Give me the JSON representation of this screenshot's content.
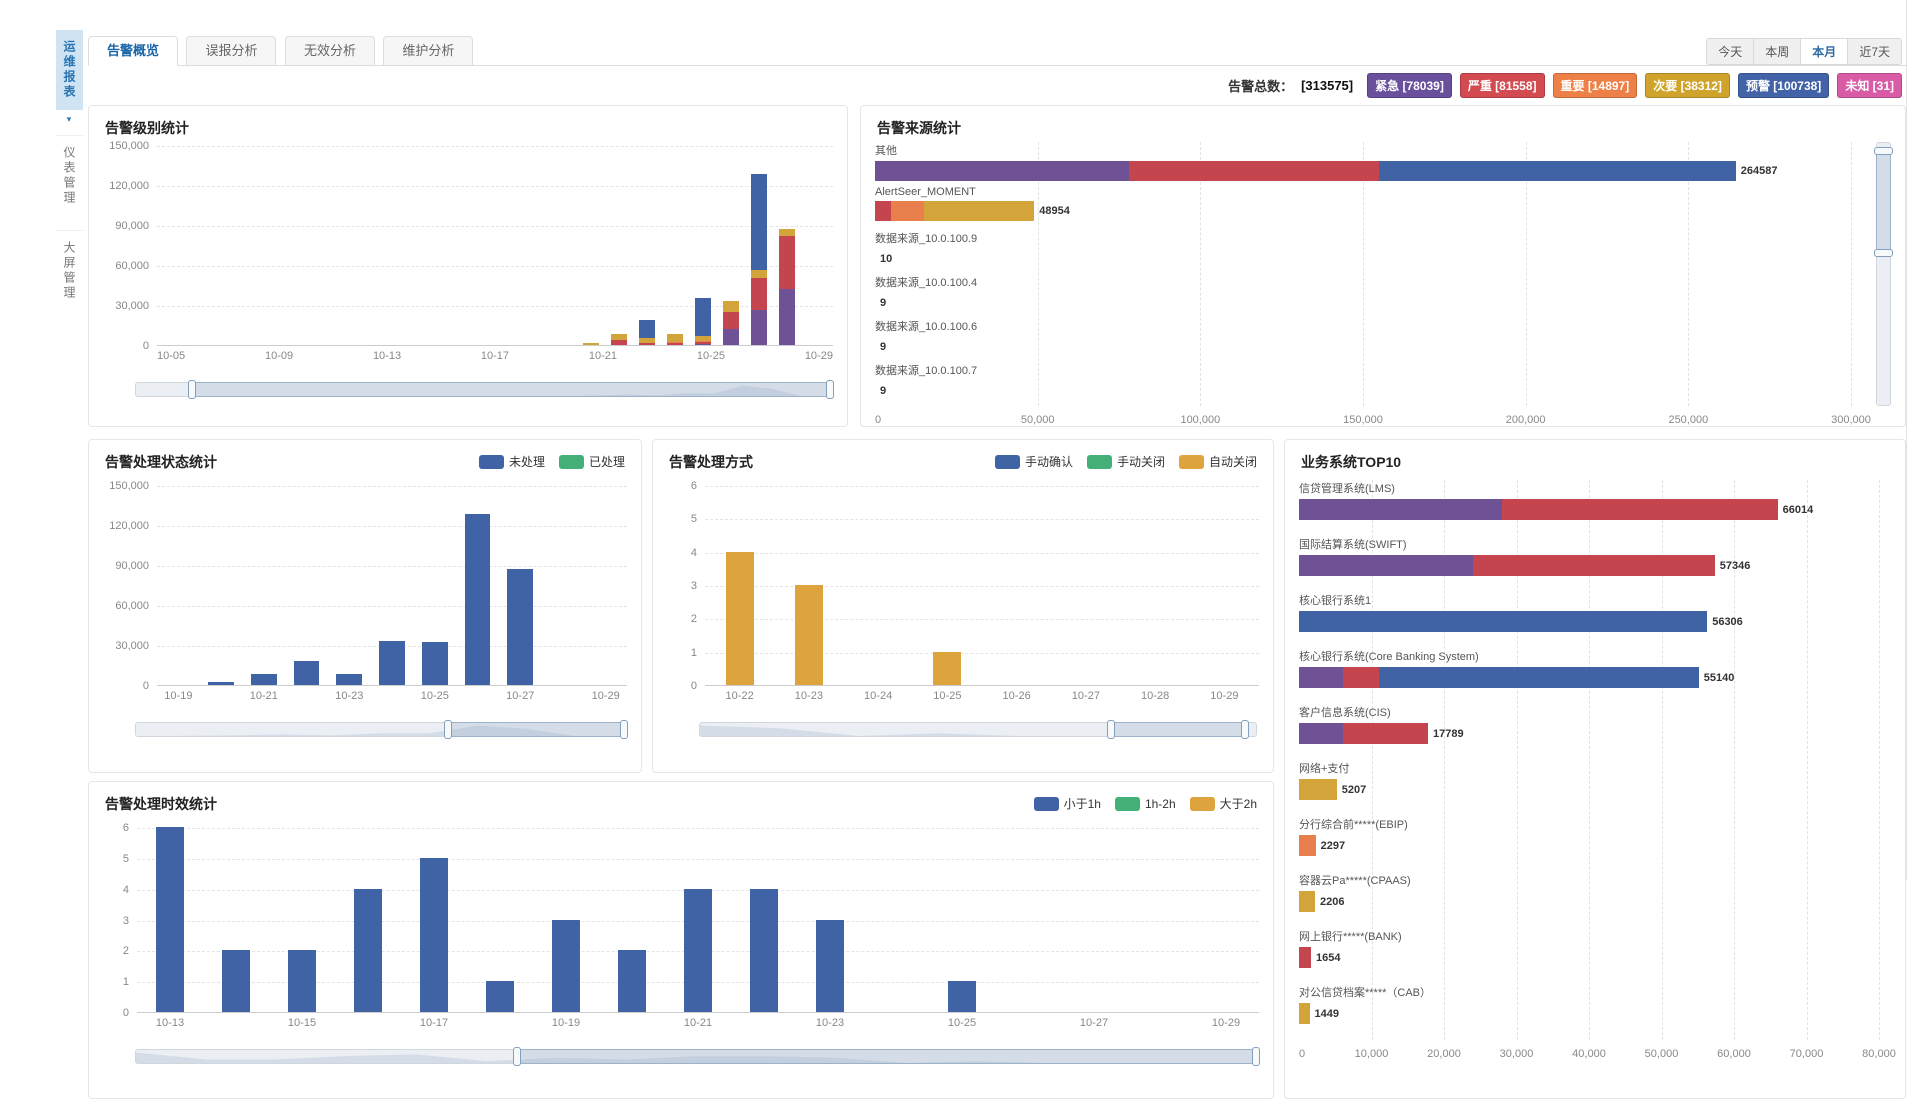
{
  "sidebar": {
    "items": [
      {
        "label": "运维报表",
        "active": true
      },
      {
        "label": "仪表管理",
        "active": false
      },
      {
        "label": "大屏管理",
        "active": false
      }
    ]
  },
  "tabs": [
    {
      "label": "告警概览",
      "active": true
    },
    {
      "label": "误报分析",
      "active": false
    },
    {
      "label": "无效分析",
      "active": false
    },
    {
      "label": "维护分析",
      "active": false
    }
  ],
  "time_filters": [
    {
      "label": "今天",
      "active": false
    },
    {
      "label": "本周",
      "active": false
    },
    {
      "label": "本月",
      "active": true
    },
    {
      "label": "近7天",
      "active": false
    }
  ],
  "summary": {
    "total_label": "告警总数：",
    "total_value": "[313575]",
    "badges": [
      {
        "label": "紧急 [78039]",
        "color": "#6a4f9d"
      },
      {
        "label": "严重 [81558]",
        "color": "#d34a50"
      },
      {
        "label": "重要 [14897]",
        "color": "#ed8047"
      },
      {
        "label": "次要 [38312]",
        "color": "#d0a42c"
      },
      {
        "label": "预警 [100738]",
        "color": "#4263a8"
      },
      {
        "label": "未知 [31]",
        "color": "#d95ba6"
      }
    ]
  },
  "colors": {
    "blue": "#3f63a5",
    "red": "#c5454f",
    "purple": "#6f5196",
    "yellow": "#d2a43a",
    "orange": "#e87f4c",
    "green": "#43b07a",
    "magenta": "#d95ba6",
    "accent": "#2e6da4"
  },
  "chart_data": [
    {
      "type": "bar",
      "stacked": true,
      "title": "告警级别统计",
      "categories": [
        "10-05",
        "10-06",
        "10-07",
        "10-08",
        "10-09",
        "10-10",
        "10-11",
        "10-12",
        "10-13",
        "10-14",
        "10-15",
        "10-16",
        "10-17",
        "10-18",
        "10-19",
        "10-20",
        "10-21",
        "10-22",
        "10-23",
        "10-24",
        "10-25",
        "10-26",
        "10-27",
        "10-28",
        "10-29"
      ],
      "x_label_every": 4,
      "series": [
        {
          "name": "紧急",
          "color": "#6f5196",
          "values": [
            0,
            0,
            0,
            0,
            0,
            0,
            0,
            0,
            0,
            0,
            0,
            0,
            0,
            0,
            0,
            0,
            0,
            0,
            0,
            800,
            12000,
            26000,
            42000,
            0,
            0
          ]
        },
        {
          "name": "严重",
          "color": "#c5454f",
          "values": [
            0,
            0,
            0,
            0,
            0,
            0,
            0,
            0,
            0,
            0,
            0,
            0,
            0,
            0,
            0,
            0,
            4000,
            1500,
            1500,
            1500,
            13000,
            24000,
            40000,
            0,
            0
          ]
        },
        {
          "name": "重要",
          "color": "#e87f4c",
          "values": [
            0,
            0,
            0,
            0,
            0,
            0,
            0,
            0,
            0,
            0,
            0,
            0,
            0,
            0,
            0,
            0,
            0,
            0,
            1000,
            800,
            0,
            0,
            0,
            0,
            0
          ]
        },
        {
          "name": "次要",
          "color": "#d2a43a",
          "values": [
            0,
            0,
            0,
            0,
            0,
            0,
            0,
            0,
            0,
            0,
            0,
            0,
            0,
            0,
            0,
            1500,
            4000,
            4000,
            5500,
            4000,
            8000,
            6000,
            5000,
            0,
            0
          ]
        },
        {
          "name": "预警",
          "color": "#3f63a5",
          "values": [
            0,
            0,
            0,
            0,
            0,
            0,
            0,
            0,
            0,
            0,
            0,
            0,
            0,
            0,
            0,
            0,
            0,
            13000,
            0,
            28000,
            0,
            72000,
            0,
            0,
            0
          ]
        }
      ],
      "ylim": [
        0,
        150000
      ],
      "y_ticks": [
        "0",
        "30,000",
        "60,000",
        "90,000",
        "120,000",
        "150,000"
      ],
      "datazoom": {
        "orient": "h",
        "start": 8,
        "end": 100
      }
    },
    {
      "type": "bar-horizontal",
      "stacked": true,
      "title": "告警来源统计",
      "xlim": [
        0,
        300000
      ],
      "x_ticks": [
        "0",
        "50,000",
        "100,000",
        "150,000",
        "200,000",
        "250,000",
        "300,000"
      ],
      "rows": [
        {
          "label": "其他",
          "value_label": "264587",
          "segments": [
            {
              "color": "#6f5196",
              "value": 78000
            },
            {
              "color": "#c5454f",
              "value": 77000
            },
            {
              "color": "#3f63a5",
              "value": 109587
            }
          ]
        },
        {
          "label": "AlertSeer_MOMENT",
          "value_label": "48954",
          "segments": [
            {
              "color": "#c5454f",
              "value": 5000
            },
            {
              "color": "#e87f4c",
              "value": 10000
            },
            {
              "color": "#d2a43a",
              "value": 33954
            }
          ]
        },
        {
          "label": "数据来源_10.0.100.9",
          "value_label": "10",
          "segments": [
            {
              "color": "#c5454f",
              "value": 10
            }
          ]
        },
        {
          "label": "数据来源_10.0.100.4",
          "value_label": "9",
          "segments": [
            {
              "color": "#c5454f",
              "value": 9
            }
          ]
        },
        {
          "label": "数据来源_10.0.100.6",
          "value_label": "9",
          "segments": [
            {
              "color": "#c5454f",
              "value": 9
            }
          ]
        },
        {
          "label": "数据来源_10.0.100.7",
          "value_label": "9",
          "segments": [
            {
              "color": "#c5454f",
              "value": 9
            }
          ]
        }
      ],
      "datazoom": {
        "orient": "v",
        "start": 3,
        "end": 42
      }
    },
    {
      "type": "bar",
      "stacked": true,
      "title": "告警处理状态统计",
      "categories": [
        "10-19",
        "10-20",
        "10-21",
        "10-22",
        "10-23",
        "10-24",
        "10-25",
        "10-26",
        "10-27",
        "10-28",
        "10-29"
      ],
      "x_label_every": 2,
      "series": [
        {
          "name": "未处理",
          "color": "#3f63a5",
          "values": [
            0,
            2500,
            8000,
            18000,
            8000,
            33000,
            32500,
            128000,
            87000,
            0,
            0
          ]
        },
        {
          "name": "已处理",
          "color": "#43b07a",
          "values": [
            0,
            0,
            0,
            0,
            0,
            0,
            0,
            0,
            0,
            0,
            0
          ]
        }
      ],
      "ylim": [
        0,
        150000
      ],
      "y_ticks": [
        "0",
        "30,000",
        "60,000",
        "90,000",
        "120,000",
        "150,000"
      ],
      "legend": true,
      "datazoom": {
        "orient": "h",
        "start": 64,
        "end": 100
      }
    },
    {
      "type": "bar",
      "stacked": true,
      "title": "告警处理方式",
      "categories": [
        "10-22",
        "10-23",
        "10-24",
        "10-25",
        "10-26",
        "10-27",
        "10-28",
        "10-29"
      ],
      "x_label_every": 1,
      "series": [
        {
          "name": "手动确认",
          "color": "#3f63a5",
          "values": [
            0,
            0,
            0,
            0,
            0,
            0,
            0,
            0
          ]
        },
        {
          "name": "手动关闭",
          "color": "#43b07a",
          "values": [
            0,
            0,
            0,
            0,
            0,
            0,
            0,
            0
          ]
        },
        {
          "name": "自动关闭",
          "color": "#dda33c",
          "values": [
            4,
            3,
            0,
            1,
            0,
            0,
            0,
            0
          ]
        }
      ],
      "ylim": [
        0,
        6
      ],
      "y_ticks": [
        "0",
        "1",
        "2",
        "3",
        "4",
        "5",
        "6"
      ],
      "legend": true,
      "datazoom": {
        "orient": "h",
        "start": 74,
        "end": 98
      }
    },
    {
      "type": "bar-horizontal",
      "stacked": true,
      "title": "业务系统TOP10",
      "xlim": [
        0,
        80000
      ],
      "x_ticks": [
        "0",
        "10,000",
        "20,000",
        "30,000",
        "40,000",
        "50,000",
        "60,000",
        "70,000",
        "80,000"
      ],
      "rows": [
        {
          "label": "信贷管理系统(LMS)",
          "value_label": "66014",
          "segments": [
            {
              "color": "#6f5196",
              "value": 28000
            },
            {
              "color": "#c5454f",
              "value": 38014
            }
          ]
        },
        {
          "label": "国际结算系统(SWIFT)",
          "value_label": "57346",
          "segments": [
            {
              "color": "#6f5196",
              "value": 24000
            },
            {
              "color": "#c5454f",
              "value": 33346
            }
          ]
        },
        {
          "label": "核心银行系统1",
          "value_label": "56306",
          "segments": [
            {
              "color": "#3f63a5",
              "value": 56306
            }
          ]
        },
        {
          "label": "核心银行系统(Core Banking System)",
          "value_label": "55140",
          "segments": [
            {
              "color": "#6f5196",
              "value": 6000
            },
            {
              "color": "#c5454f",
              "value": 5000
            },
            {
              "color": "#3f63a5",
              "value": 44140
            }
          ]
        },
        {
          "label": "客户信息系统(CIS)",
          "value_label": "17789",
          "segments": [
            {
              "color": "#6f5196",
              "value": 6000
            },
            {
              "color": "#c5454f",
              "value": 11789
            }
          ]
        },
        {
          "label": "网络+支付",
          "value_label": "5207",
          "segments": [
            {
              "color": "#d2a43a",
              "value": 5207
            }
          ]
        },
        {
          "label": "分行综合前*****(EBIP)",
          "value_label": "2297",
          "segments": [
            {
              "color": "#e87f4c",
              "value": 2297
            }
          ]
        },
        {
          "label": "容器云Pa*****(CPAAS)",
          "value_label": "2206",
          "segments": [
            {
              "color": "#d2a43a",
              "value": 2206
            }
          ]
        },
        {
          "label": "网上银行*****(BANK)",
          "value_label": "1654",
          "segments": [
            {
              "color": "#c5454f",
              "value": 1654
            }
          ]
        },
        {
          "label": "对公信贷档案*****（CAB）",
          "value_label": "1449",
          "segments": [
            {
              "color": "#d2a43a",
              "value": 1449
            }
          ]
        }
      ]
    },
    {
      "type": "bar",
      "stacked": true,
      "title": "告警处理时效统计",
      "categories": [
        "10-13",
        "10-14",
        "10-15",
        "10-16",
        "10-17",
        "10-18",
        "10-19",
        "10-20",
        "10-21",
        "10-22",
        "10-23",
        "10-24",
        "10-25",
        "10-26",
        "10-27",
        "10-28",
        "10-29"
      ],
      "x_label_every": 2,
      "series": [
        {
          "name": "小于1h",
          "color": "#3f63a5",
          "values": [
            6,
            2,
            2,
            4,
            5,
            1,
            3,
            2,
            4,
            4,
            3,
            0,
            1,
            0,
            0,
            0,
            0
          ]
        },
        {
          "name": "1h-2h",
          "color": "#43b07a",
          "values": [
            0,
            0,
            0,
            0,
            0,
            0,
            0,
            0,
            0,
            0,
            0,
            0,
            0,
            0,
            0,
            0,
            0
          ]
        },
        {
          "name": "大于2h",
          "color": "#dda33c",
          "values": [
            0,
            0,
            0,
            0,
            0,
            0,
            0,
            0,
            0,
            0,
            0,
            0,
            0,
            0,
            0,
            0,
            0
          ]
        }
      ],
      "ylim": [
        0,
        6
      ],
      "y_ticks": [
        "0",
        "1",
        "2",
        "3",
        "4",
        "5",
        "6"
      ],
      "legend": true,
      "datazoom": {
        "orient": "h",
        "start": 34,
        "end": 100
      }
    }
  ]
}
